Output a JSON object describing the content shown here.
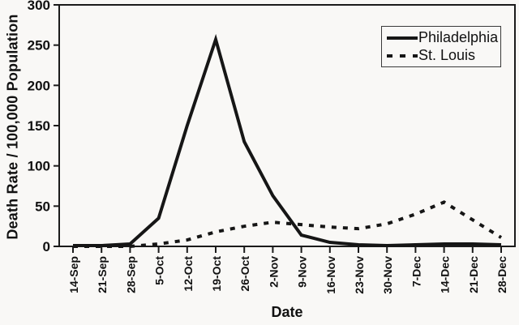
{
  "figure": {
    "ylabel": "Death Rate / 100,000 Population",
    "xlabel": "Date"
  },
  "legend": {
    "items": [
      {
        "label": "Philadelphia",
        "style": "solid"
      },
      {
        "label": "St. Louis",
        "style": "dashed"
      }
    ]
  },
  "chart_data": {
    "type": "line",
    "title": "",
    "xlabel": "Date",
    "ylabel": "Death Rate / 100,000 Population",
    "categories": [
      "14-Sep",
      "21-Sep",
      "28-Sep",
      "5-Oct",
      "12-Oct",
      "19-Oct",
      "26-Oct",
      "2-Nov",
      "9-Nov",
      "16-Nov",
      "23-Nov",
      "30-Nov",
      "7-Dec",
      "14-Dec",
      "21-Dec",
      "28-Dec"
    ],
    "series": [
      {
        "name": "Philadelphia",
        "style": "solid",
        "color": "#161616",
        "values": [
          1,
          1,
          3,
          35,
          150,
          257,
          130,
          63,
          14,
          5,
          2,
          1,
          2,
          3,
          3,
          2
        ]
      },
      {
        "name": "St. Louis",
        "style": "dashed",
        "color": "#161616",
        "values": [
          0,
          0,
          0,
          3,
          8,
          18,
          25,
          30,
          27,
          24,
          22,
          28,
          40,
          55,
          33,
          11
        ]
      }
    ],
    "ylim": [
      0,
      300
    ],
    "yticks": [
      0,
      50,
      100,
      150,
      200,
      250,
      300
    ],
    "grid": false,
    "legend_position": "top-right"
  }
}
